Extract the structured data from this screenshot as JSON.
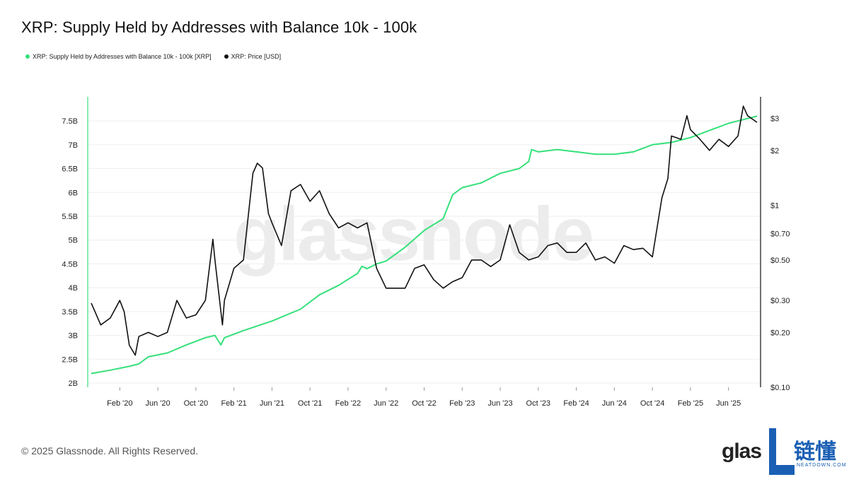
{
  "header": {
    "title": "XRP: Supply Held by Addresses with Balance 10k - 100k"
  },
  "legend": [
    {
      "label": "XRP: Supply Held by Addresses with Balance 10k - 100k [XRP]",
      "color": "#35e07a"
    },
    {
      "label": "XRP: Price [USD]",
      "color": "#111111"
    }
  ],
  "watermark": "glassnode",
  "footer": {
    "copyright": "© 2025 Glassnode. All Rights Reserved.",
    "logo_text": "glas",
    "logo_cn": "链懂",
    "logo_sub": "NEATDOWN.COM"
  },
  "chart_data": {
    "type": "line",
    "title": "XRP: Supply Held by Addresses with Balance 10k - 100k",
    "x_ticks": [
      "Feb '20",
      "Jun '20",
      "Oct '20",
      "Feb '21",
      "Jun '21",
      "Oct '21",
      "Feb '22",
      "Jun '22",
      "Oct '22",
      "Feb '23",
      "Jun '23",
      "Oct '23",
      "Feb '24",
      "Jun '24",
      "Oct '24",
      "Feb '25",
      "Jun '25"
    ],
    "y_left": {
      "ticks": [
        "2B",
        "2.5B",
        "3B",
        "3.5B",
        "4B",
        "4.5B",
        "5B",
        "5.5B",
        "6B",
        "6.5B",
        "7B",
        "7.5B"
      ],
      "values": [
        2.0,
        2.5,
        3.0,
        3.5,
        4.0,
        4.5,
        5.0,
        5.5,
        6.0,
        6.5,
        7.0,
        7.5
      ],
      "ylim": [
        2.0,
        7.65
      ]
    },
    "y_right": {
      "scale": "log",
      "ticks": [
        "$0.10",
        "$0.20",
        "$0.30",
        "$0.50",
        "$0.70",
        "$1",
        "$2",
        "$3"
      ],
      "values": [
        0.1,
        0.2,
        0.3,
        0.5,
        0.7,
        1,
        2,
        3
      ],
      "ylim": [
        0.1,
        3.6
      ]
    },
    "x_range": [
      "2019-11",
      "2025-09"
    ],
    "grid": true,
    "legend_position": "top-left",
    "series": [
      {
        "name": "XRP: Supply Held by Addresses with Balance 10k - 100k [XRP]",
        "axis": "left",
        "color": "#35e07a",
        "points": [
          [
            "2019-11",
            2.2
          ],
          [
            "2020-01",
            2.27
          ],
          [
            "2020-03",
            2.35
          ],
          [
            "2020-04",
            2.4
          ],
          [
            "2020-05",
            2.55
          ],
          [
            "2020-07",
            2.63
          ],
          [
            "2020-09",
            2.8
          ],
          [
            "2020-11",
            2.95
          ],
          [
            "2020-12",
            3.0
          ],
          [
            "2020-12-20",
            2.8
          ],
          [
            "2021-01",
            2.95
          ],
          [
            "2021-03",
            3.1
          ],
          [
            "2021-06",
            3.3
          ],
          [
            "2021-09",
            3.55
          ],
          [
            "2021-11",
            3.85
          ],
          [
            "2022-01",
            4.05
          ],
          [
            "2022-03",
            4.3
          ],
          [
            "2022-03-15",
            4.45
          ],
          [
            "2022-04",
            4.4
          ],
          [
            "2022-05",
            4.5
          ],
          [
            "2022-06",
            4.56
          ],
          [
            "2022-08",
            4.85
          ],
          [
            "2022-10",
            5.2
          ],
          [
            "2022-12",
            5.45
          ],
          [
            "2023-01",
            5.95
          ],
          [
            "2023-02",
            6.1
          ],
          [
            "2023-04",
            6.2
          ],
          [
            "2023-06",
            6.4
          ],
          [
            "2023-08",
            6.5
          ],
          [
            "2023-09",
            6.65
          ],
          [
            "2023-09-10",
            6.9
          ],
          [
            "2023-10",
            6.85
          ],
          [
            "2023-12",
            6.9
          ],
          [
            "2024-02",
            6.85
          ],
          [
            "2024-04",
            6.8
          ],
          [
            "2024-06",
            6.8
          ],
          [
            "2024-08",
            6.85
          ],
          [
            "2024-10",
            7.0
          ],
          [
            "2024-12",
            7.05
          ],
          [
            "2025-02",
            7.15
          ],
          [
            "2025-04",
            7.3
          ],
          [
            "2025-06",
            7.45
          ],
          [
            "2025-08",
            7.55
          ],
          [
            "2025-09",
            7.6
          ]
        ]
      },
      {
        "name": "XRP: Price [USD]",
        "axis": "right",
        "color": "#111111",
        "points": [
          [
            "2019-11",
            0.29
          ],
          [
            "2019-12",
            0.22
          ],
          [
            "2020-01",
            0.24
          ],
          [
            "2020-02",
            0.3
          ],
          [
            "2020-02-15",
            0.26
          ],
          [
            "2020-03",
            0.17
          ],
          [
            "2020-03-20",
            0.15
          ],
          [
            "2020-04",
            0.19
          ],
          [
            "2020-05",
            0.2
          ],
          [
            "2020-06",
            0.19
          ],
          [
            "2020-07",
            0.2
          ],
          [
            "2020-08",
            0.3
          ],
          [
            "2020-09",
            0.24
          ],
          [
            "2020-10",
            0.25
          ],
          [
            "2020-11",
            0.3
          ],
          [
            "2020-11-25",
            0.65
          ],
          [
            "2020-12",
            0.5
          ],
          [
            "2020-12-25",
            0.22
          ],
          [
            "2021-01",
            0.3
          ],
          [
            "2021-02",
            0.45
          ],
          [
            "2021-03",
            0.5
          ],
          [
            "2021-04",
            1.5
          ],
          [
            "2021-04-15",
            1.7
          ],
          [
            "2021-05",
            1.6
          ],
          [
            "2021-05-20",
            0.9
          ],
          [
            "2021-06",
            0.8
          ],
          [
            "2021-07",
            0.6
          ],
          [
            "2021-08",
            1.2
          ],
          [
            "2021-09",
            1.3
          ],
          [
            "2021-10",
            1.05
          ],
          [
            "2021-11",
            1.2
          ],
          [
            "2021-12",
            0.9
          ],
          [
            "2022-01",
            0.75
          ],
          [
            "2022-02",
            0.8
          ],
          [
            "2022-03",
            0.75
          ],
          [
            "2022-04",
            0.8
          ],
          [
            "2022-05",
            0.45
          ],
          [
            "2022-06",
            0.35
          ],
          [
            "2022-07",
            0.35
          ],
          [
            "2022-08",
            0.35
          ],
          [
            "2022-09",
            0.45
          ],
          [
            "2022-10",
            0.47
          ],
          [
            "2022-11",
            0.39
          ],
          [
            "2022-12",
            0.35
          ],
          [
            "2023-01",
            0.38
          ],
          [
            "2023-02",
            0.4
          ],
          [
            "2023-03",
            0.5
          ],
          [
            "2023-04",
            0.5
          ],
          [
            "2023-05",
            0.46
          ],
          [
            "2023-06",
            0.5
          ],
          [
            "2023-07",
            0.78
          ],
          [
            "2023-08",
            0.55
          ],
          [
            "2023-09",
            0.5
          ],
          [
            "2023-10",
            0.52
          ],
          [
            "2023-11",
            0.6
          ],
          [
            "2023-12",
            0.62
          ],
          [
            "2024-01",
            0.55
          ],
          [
            "2024-02",
            0.55
          ],
          [
            "2024-03",
            0.62
          ],
          [
            "2024-04",
            0.5
          ],
          [
            "2024-05",
            0.52
          ],
          [
            "2024-06",
            0.48
          ],
          [
            "2024-07",
            0.6
          ],
          [
            "2024-08",
            0.57
          ],
          [
            "2024-09",
            0.58
          ],
          [
            "2024-10",
            0.52
          ],
          [
            "2024-11",
            1.1
          ],
          [
            "2024-11-20",
            1.4
          ],
          [
            "2024-12",
            2.4
          ],
          [
            "2025-01",
            2.3
          ],
          [
            "2025-01-20",
            3.1
          ],
          [
            "2025-02",
            2.6
          ],
          [
            "2025-03",
            2.3
          ],
          [
            "2025-04",
            2.0
          ],
          [
            "2025-05",
            2.3
          ],
          [
            "2025-06",
            2.1
          ],
          [
            "2025-07",
            2.4
          ],
          [
            "2025-07-18",
            3.5
          ],
          [
            "2025-08",
            3.1
          ],
          [
            "2025-09",
            2.85
          ]
        ]
      }
    ]
  }
}
